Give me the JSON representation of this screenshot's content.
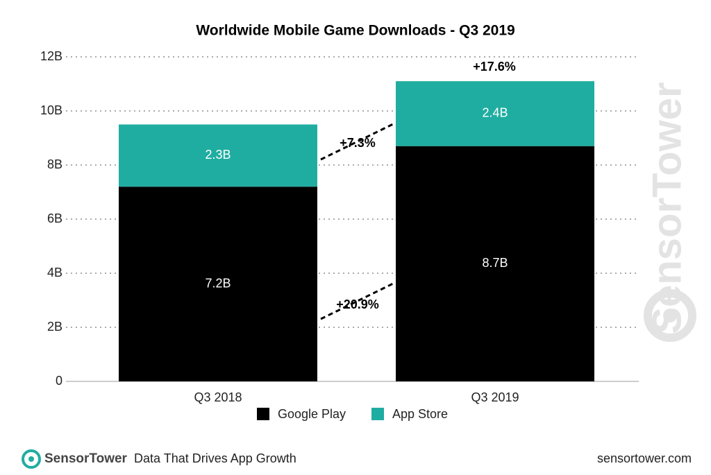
{
  "chart_data": {
    "type": "bar",
    "stacked": true,
    "title": "Worldwide Mobile Game Downloads - Q3 2019",
    "categories": [
      "Q3 2018",
      "Q3 2019"
    ],
    "series": [
      {
        "name": "Google Play",
        "color": "#000000",
        "values": [
          7.2,
          8.7
        ],
        "value_labels": [
          "7.2B",
          "8.7B"
        ]
      },
      {
        "name": "App Store",
        "color": "#20ada1",
        "values": [
          2.3,
          2.4
        ],
        "value_labels": [
          "2.3B",
          "2.4B"
        ]
      }
    ],
    "ylim": [
      0,
      12
    ],
    "yticks": [
      0,
      {
        "value": 2,
        "label": "2B"
      },
      {
        "value": 4,
        "label": "4B"
      },
      {
        "value": 6,
        "label": "6B"
      },
      {
        "value": 8,
        "label": "8B"
      },
      {
        "value": 10,
        "label": "10B"
      },
      {
        "value": 12,
        "label": "12B"
      }
    ],
    "grid": true,
    "annotations": [
      "+7.3%",
      "+20.9%",
      "+17.6%"
    ],
    "watermark": "SensorTower",
    "footer": {
      "brand": "SensorTower",
      "tagline": "Data That Drives App Growth",
      "url": "sensortower.com"
    }
  }
}
